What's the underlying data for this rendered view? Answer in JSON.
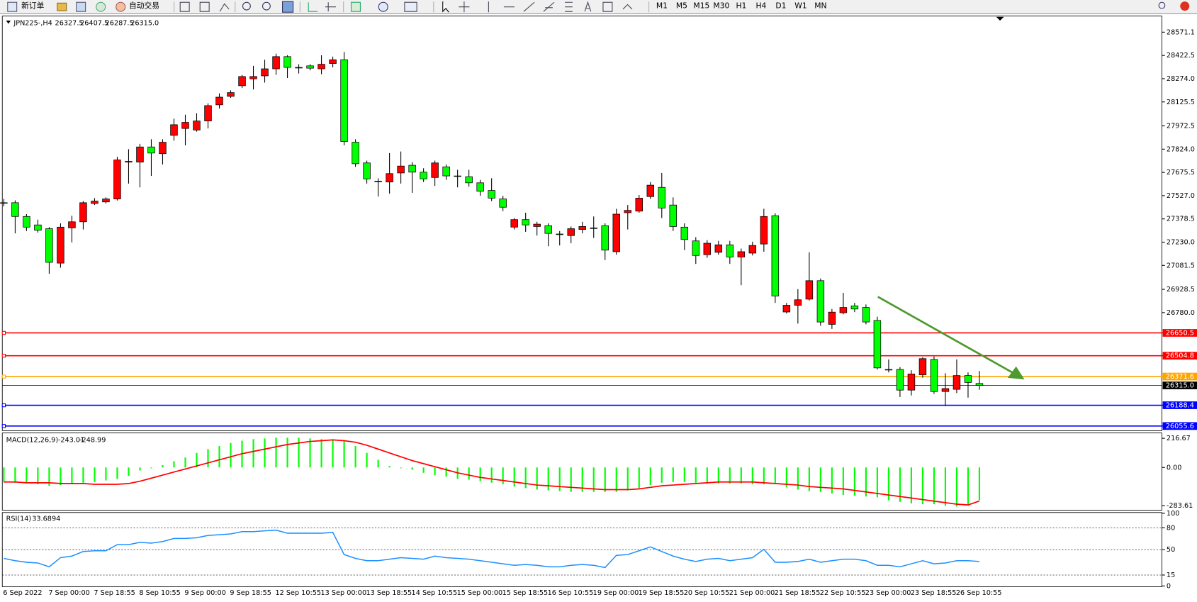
{
  "toolbar": {
    "new_order": "新订单",
    "auto_trading": "自动交易",
    "timeframes": [
      "M1",
      "M5",
      "M15",
      "M30",
      "H1",
      "H4",
      "D1",
      "W1",
      "MN"
    ]
  },
  "chart_data": [
    {
      "type": "candlestick",
      "symbol": "JPN225-,H4",
      "last_close_label": "26315.0",
      "up_color": "#ff0000",
      "down_color": "#00ff00",
      "grid": false,
      "categories": [
        "6 Sep 2022",
        null,
        null,
        null,
        "7 Sep 00:00",
        null,
        null,
        null,
        "7 Sep 18:55",
        null,
        null,
        null,
        "8 Sep 10:55",
        null,
        null,
        null,
        "9 Sep 00:00",
        null,
        null,
        null,
        "9 Sep 18:55",
        null,
        null,
        null,
        "12 Sep 10:55",
        null,
        null,
        null,
        "13 Sep 00:00",
        null,
        null,
        null,
        "13 Sep 18:55",
        null,
        null,
        null,
        "14 Sep 10:55",
        null,
        null,
        null,
        "15 Sep 00:00",
        null,
        null,
        null,
        "15 Sep 18:55",
        null,
        null,
        null,
        "16 Sep 10:55",
        null,
        null,
        null,
        "19 Sep 00:00",
        null,
        null,
        null,
        "19 Sep 18:55",
        null,
        null,
        null,
        "20 Sep 10:55",
        null,
        null,
        null,
        "21 Sep 00:00",
        null,
        null,
        null,
        "21 Sep 18:55",
        null,
        null,
        null,
        "22 Sep 10:55",
        null,
        null,
        null,
        "23 Sep 00:00",
        null,
        null,
        null,
        "23 Sep 18:55",
        null,
        null,
        null,
        "26 Sep 10:55",
        null,
        null
      ],
      "open": [
        27482,
        27482,
        27394,
        27340,
        27316,
        27096,
        27321,
        27360,
        27477,
        27487,
        27506,
        27741,
        27741,
        27838,
        27795,
        27912,
        27956,
        27946,
        28004,
        28107,
        28161,
        28229,
        28273,
        28292,
        28337,
        28415,
        28346,
        28356,
        28337,
        28371,
        28395,
        27868,
        27736,
        27619,
        27614,
        27672,
        27721,
        27677,
        27643,
        27711,
        27653,
        27648,
        27609,
        27560,
        27506,
        27326,
        27374,
        27330,
        27335,
        27282,
        27272,
        27311,
        27321,
        27335,
        27169,
        27418,
        27428,
        27521,
        27580,
        27467,
        27326,
        27238,
        27150,
        27165,
        27213,
        27135,
        27160,
        27218,
        27399,
        26784,
        26827,
        26866,
        26984,
        26705,
        26779,
        26823,
        26813,
        26730,
        26417,
        26417,
        26285,
        26383,
        26481,
        26276,
        26290,
        26378,
        26327.5
      ],
      "high": [
        27506,
        27497,
        27409,
        27374,
        27326,
        27350,
        27399,
        27492,
        27511,
        27516,
        27775,
        27824,
        27858,
        27887,
        27887,
        28019,
        28044,
        28053,
        28117,
        28180,
        28200,
        28298,
        28356,
        28395,
        28434,
        28424,
        28366,
        28366,
        28424,
        28415,
        28444,
        27887,
        27751,
        27638,
        27799,
        27809,
        27741,
        27702,
        27751,
        27726,
        27692,
        27692,
        27628,
        27638,
        27526,
        27384,
        27418,
        27360,
        27350,
        27301,
        27330,
        27360,
        27394,
        27350,
        27443,
        27467,
        27531,
        27614,
        27672,
        27516,
        27350,
        27262,
        27243,
        27238,
        27238,
        27189,
        27233,
        27443,
        27414,
        26842,
        26930,
        27165,
        26998,
        26803,
        26906,
        26842,
        26832,
        26754,
        26481,
        26432,
        26412,
        26495,
        26500,
        26393,
        26481,
        26398,
        26407.5
      ],
      "low": [
        27458,
        27286,
        27301,
        27291,
        27028,
        27067,
        27228,
        27311,
        27467,
        27477,
        27496,
        27604,
        27580,
        27653,
        27726,
        27878,
        27848,
        27936,
        27956,
        28083,
        28151,
        28214,
        28205,
        28249,
        28298,
        28278,
        28307,
        28327,
        28302,
        28346,
        27848,
        27711,
        27604,
        27521,
        27540,
        27604,
        27545,
        27614,
        27589,
        27628,
        27580,
        27584,
        27526,
        27492,
        27428,
        27311,
        27296,
        27272,
        27204,
        27209,
        27223,
        27286,
        27257,
        27116,
        27150,
        27311,
        27418,
        27506,
        27384,
        27301,
        27179,
        27091,
        27130,
        27150,
        27091,
        26955,
        27145,
        27169,
        26842,
        26774,
        26710,
        26857,
        26696,
        26676,
        26769,
        26783,
        26705,
        26417,
        26398,
        26241,
        26251,
        26364,
        26261,
        26183,
        26266,
        26237,
        26287.5
      ],
      "close": [
        27482,
        27394,
        27326,
        27306,
        27101,
        27326,
        27360,
        27482,
        27492,
        27506,
        27755,
        27746,
        27838,
        27799,
        27868,
        27980,
        27995,
        28004,
        28102,
        28156,
        28185,
        28288,
        28288,
        28337,
        28415,
        28346,
        28346,
        28341,
        28366,
        28395,
        27873,
        27731,
        27634,
        27619,
        27668,
        27716,
        27677,
        27634,
        27736,
        27653,
        27653,
        27609,
        27555,
        27511,
        27453,
        27374,
        27340,
        27345,
        27286,
        27282,
        27316,
        27330,
        27321,
        27179,
        27409,
        27433,
        27511,
        27594,
        27448,
        27330,
        27247,
        27145,
        27223,
        27213,
        27135,
        27169,
        27209,
        27394,
        26886,
        26827,
        26862,
        26984,
        26720,
        26783,
        26813,
        26803,
        26720,
        26427,
        26417,
        26285,
        26388,
        26486,
        26276,
        26295,
        26378,
        26334,
        26315
      ],
      "ylim": [
        26031,
        28669
      ],
      "yticks": [
        28571.1,
        28422.5,
        {
          "value": 28274,
          "label": "28274.0"
        },
        28125.5,
        27972.5,
        {
          "value": 27824,
          "label": "27824.0"
        },
        27675.5,
        {
          "value": 27527,
          "label": "27527.0"
        },
        27378.5,
        {
          "value": 27230,
          "label": "27230.0"
        },
        27081.5,
        26928.5,
        {
          "value": 26780,
          "label": "26780.0"
        }
      ],
      "hlines": [
        {
          "value": 26650.5,
          "color": "#ff0000"
        },
        {
          "value": 26504.8,
          "color": "#ff0000"
        },
        {
          "value": 26371.6,
          "color": "#ffa500"
        },
        {
          "value": 26188.4,
          "color": "#0000ff"
        },
        {
          "value": 26055.6,
          "color": "#0000ff"
        }
      ]
    },
    {
      "type": "macd",
      "title": "MACD(12,26,9)",
      "color": "#00ff00",
      "signal_color": "#ff0000",
      "histogram": [
        -108.0,
        -113.7,
        -119.4,
        -125.1,
        -136.4,
        -130.8,
        -125.1,
        -113.7,
        -108.0,
        -96.6,
        -85.3,
        -62.5,
        -22.7,
        -5.7,
        17.1,
        45.5,
        73.9,
        108.0,
        136.4,
        159.2,
        181.9,
        199.0,
        210.3,
        216.0,
        221.7,
        221.7,
        221.7,
        216.0,
        210.3,
        204.7,
        199.0,
        159.2,
        108.0,
        56.9,
        11.4,
        -5.7,
        -17.1,
        -39.8,
        -56.9,
        -68.2,
        -85.3,
        -91.0,
        -102.3,
        -113.7,
        -125.1,
        -142.1,
        -153.5,
        -164.9,
        -170.6,
        -176.2,
        -181.9,
        -181.9,
        -181.9,
        -181.9,
        -181.9,
        -170.6,
        -153.5,
        -130.8,
        -113.7,
        -108.0,
        -108.0,
        -113.7,
        -119.4,
        -119.4,
        -119.4,
        -119.4,
        -125.1,
        -125.1,
        -119.4,
        -147.8,
        -164.9,
        -176.2,
        -181.9,
        -193.3,
        -204.7,
        -210.3,
        -216.0,
        -221.7,
        -244.5,
        -255.8,
        -267.2,
        -272.9,
        -272.9,
        -284.3,
        -290.0,
        -284.3,
        -243.01
      ],
      "signal": [
        -108.0,
        -108.0,
        -113.7,
        -113.7,
        -113.7,
        -119.4,
        -119.4,
        -119.4,
        -125.1,
        -125.1,
        -125.1,
        -119.4,
        -102.3,
        -79.6,
        -56.9,
        -34.1,
        -11.4,
        11.4,
        34.1,
        56.9,
        79.6,
        102.3,
        119.4,
        136.4,
        153.5,
        170.6,
        181.9,
        193.3,
        199.0,
        204.7,
        199.0,
        187.6,
        164.9,
        136.4,
        108.0,
        79.6,
        51.2,
        28.4,
        5.7,
        -17.1,
        -39.8,
        -56.9,
        -73.9,
        -85.3,
        -96.6,
        -108.0,
        -119.4,
        -130.8,
        -136.4,
        -142.1,
        -147.8,
        -153.5,
        -159.2,
        -164.9,
        -164.9,
        -164.9,
        -159.2,
        -147.8,
        -136.4,
        -130.8,
        -125.1,
        -119.4,
        -113.7,
        -108.0,
        -108.0,
        -108.0,
        -108.0,
        -113.7,
        -119.4,
        -125.1,
        -130.8,
        -142.1,
        -147.8,
        -153.5,
        -159.2,
        -170.6,
        -181.9,
        -193.3,
        -204.7,
        -216.0,
        -227.4,
        -238.8,
        -250.1,
        -261.5,
        -272.9,
        -278.6,
        -248.99
      ],
      "ylim": [
        -317.7,
        250.8
      ],
      "yticks": [
        216.67,
        {
          "value": 0,
          "label": "0.00"
        },
        -283.61
      ]
    },
    {
      "type": "line",
      "title": "RSI(14)",
      "color": "#1e90ff",
      "values": [
        37.9,
        34.7,
        32.6,
        31.6,
        26.3,
        38.9,
        41.1,
        47.4,
        48.4,
        48.4,
        56.8,
        56.8,
        60.0,
        58.9,
        61.1,
        65.3,
        65.3,
        66.3,
        69.5,
        70.5,
        71.6,
        74.7,
        74.7,
        75.8,
        76.8,
        72.6,
        72.6,
        72.6,
        72.6,
        73.7,
        43.2,
        37.9,
        34.7,
        34.7,
        36.8,
        38.9,
        37.9,
        36.8,
        41.1,
        38.9,
        37.9,
        36.8,
        34.7,
        32.6,
        30.5,
        28.4,
        29.5,
        28.4,
        26.3,
        26.3,
        28.4,
        29.5,
        28.4,
        25.3,
        42.1,
        43.2,
        48.4,
        53.7,
        47.4,
        41.1,
        36.8,
        33.7,
        36.8,
        37.9,
        34.7,
        36.8,
        38.9,
        50.5,
        32.6,
        32.6,
        33.7,
        36.8,
        32.6,
        34.7,
        36.8,
        36.8,
        34.7,
        28.4,
        28.4,
        26.3,
        30.5,
        34.7,
        30.5,
        31.6,
        34.7,
        34.7,
        33.6894
      ],
      "ylim": [
        0,
        100
      ],
      "yticks": [
        100,
        80,
        50,
        15,
        0
      ],
      "levels": [
        80,
        50,
        15
      ]
    }
  ]
}
